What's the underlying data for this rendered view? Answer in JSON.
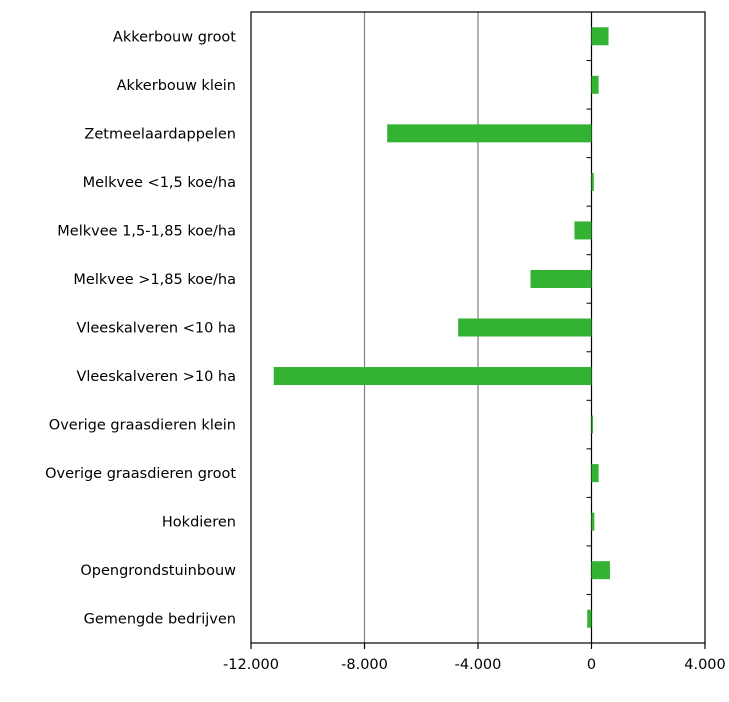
{
  "chart_data": {
    "type": "bar",
    "orientation": "horizontal",
    "categories": [
      "Akkerbouw groot",
      "Akkerbouw klein",
      "Zetmeelaardappelen",
      "Melkvee <1,5 koe/ha",
      "Melkvee 1,5-1,85 koe/ha",
      "Melkvee >1,85 koe/ha",
      "Vleeskalveren <10 ha",
      "Vleeskalveren >10 ha",
      "Overige graasdieren klein",
      "Overige graasdieren groot",
      "Hokdieren",
      "Opengrondstuinbouw",
      "Gemengde bedrijven"
    ],
    "values": [
      600,
      250,
      -7200,
      80,
      -600,
      -2150,
      -4700,
      -11200,
      20,
      250,
      100,
      650,
      -150
    ],
    "xlim": [
      -12000,
      4000
    ],
    "xticks": [
      -12000,
      -8000,
      -4000,
      0,
      4000
    ],
    "xtick_labels": [
      "-12.000",
      "-8.000",
      "-4.000",
      "0",
      "4.000"
    ],
    "gridlines": [
      -8000,
      -4000
    ],
    "bar_color": "#33b233",
    "grid_color": "#808080",
    "title": "",
    "xlabel": "",
    "ylabel": ""
  }
}
